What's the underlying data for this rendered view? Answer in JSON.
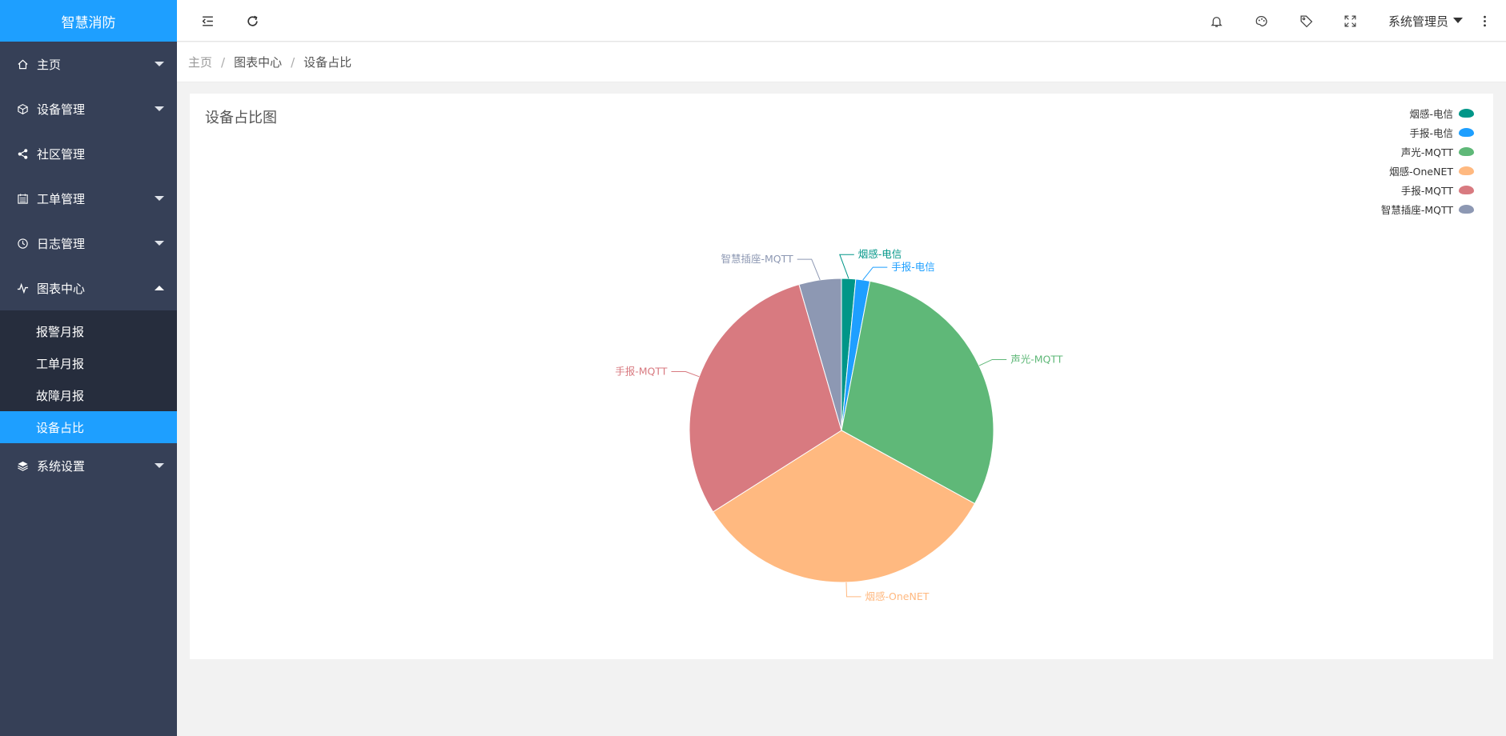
{
  "app": {
    "title": "智慧消防"
  },
  "sidebar": {
    "items": [
      {
        "label": "主页",
        "icon": "home-icon",
        "has_caret": true
      },
      {
        "label": "设备管理",
        "icon": "cube-icon",
        "has_caret": true
      },
      {
        "label": "社区管理",
        "icon": "share-icon",
        "has_caret": false
      },
      {
        "label": "工单管理",
        "icon": "calendar-icon",
        "has_caret": true
      },
      {
        "label": "日志管理",
        "icon": "clock-icon",
        "has_caret": true
      },
      {
        "label": "图表中心",
        "icon": "chart-icon",
        "has_caret": true,
        "expanded": true
      },
      {
        "label": "系统设置",
        "icon": "layers-icon",
        "has_caret": true
      }
    ],
    "submenu": [
      {
        "label": "报警月报"
      },
      {
        "label": "工单月报"
      },
      {
        "label": "故障月报"
      },
      {
        "label": "设备占比",
        "active": true
      }
    ]
  },
  "header": {
    "icons": [
      "menu-fold-icon",
      "refresh-icon",
      "bell-icon",
      "palette-icon",
      "tag-icon",
      "fullscreen-icon",
      "more-icon"
    ],
    "user": "系统管理员"
  },
  "breadcrumb": {
    "items": [
      "主页",
      "图表中心",
      "设备占比"
    ]
  },
  "card": {
    "title": "设备占比图"
  },
  "colors": {
    "accent": "#1E9FFF",
    "sidebar_bg": "#364057",
    "submenu_bg": "#262d3d"
  },
  "chart_data": {
    "type": "pie",
    "title": "",
    "legend_position": "top-right",
    "series": [
      {
        "name": "烟感-电信",
        "value": 1.5,
        "color": "#009688"
      },
      {
        "name": "手报-电信",
        "value": 1.5,
        "color": "#1E9FFF"
      },
      {
        "name": "声光-MQTT",
        "value": 30,
        "color": "#5FB878"
      },
      {
        "name": "烟感-OneNET",
        "value": 33,
        "color": "#FFB980"
      },
      {
        "name": "手报-MQTT",
        "value": 29.5,
        "color": "#D87A80"
      },
      {
        "name": "智慧插座-MQTT",
        "value": 4.5,
        "color": "#8D98B3"
      }
    ]
  }
}
